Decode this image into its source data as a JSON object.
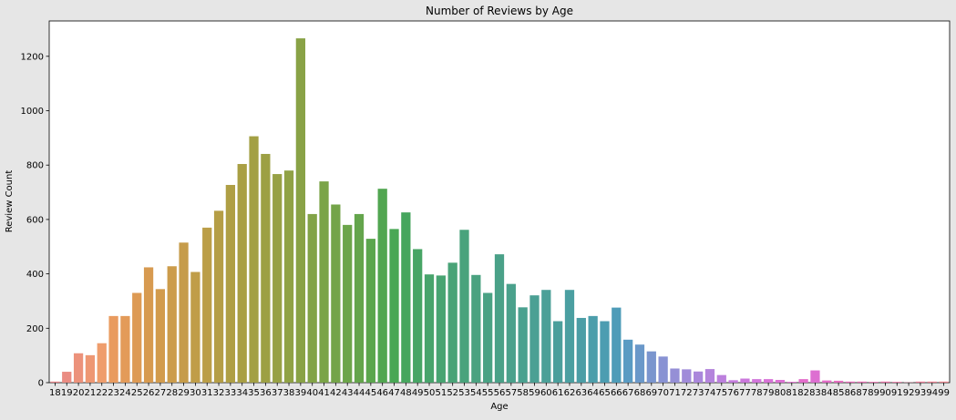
{
  "chart_data": {
    "type": "bar",
    "title": "Number of Reviews by Age",
    "xlabel": "Age",
    "ylabel": "Review Count",
    "ylim": [
      0,
      1330
    ],
    "yticks": [
      0,
      200,
      400,
      600,
      800,
      1000,
      1200
    ],
    "grid": false,
    "legend": "none",
    "categories": [
      "18",
      "19",
      "20",
      "21",
      "22",
      "23",
      "24",
      "25",
      "26",
      "27",
      "28",
      "29",
      "30",
      "31",
      "32",
      "33",
      "34",
      "35",
      "36",
      "37",
      "38",
      "39",
      "40",
      "41",
      "42",
      "43",
      "44",
      "45",
      "46",
      "47",
      "48",
      "49",
      "50",
      "51",
      "52",
      "53",
      "54",
      "55",
      "56",
      "57",
      "58",
      "59",
      "60",
      "61",
      "62",
      "63",
      "64",
      "65",
      "66",
      "67",
      "68",
      "69",
      "70",
      "71",
      "72",
      "73",
      "74",
      "75",
      "76",
      "77",
      "78",
      "79",
      "80",
      "81",
      "82",
      "83",
      "84",
      "85",
      "86",
      "87",
      "89",
      "90",
      "91",
      "92",
      "93",
      "94",
      "99"
    ],
    "values": [
      4,
      40,
      108,
      101,
      145,
      245,
      245,
      330,
      424,
      344,
      428,
      515,
      407,
      570,
      632,
      727,
      804,
      906,
      841,
      767,
      780,
      1266,
      620,
      740,
      655,
      580,
      620,
      529,
      713,
      565,
      626,
      491,
      398,
      394,
      441,
      562,
      396,
      330,
      472,
      363,
      277,
      321,
      341,
      226,
      341,
      238,
      245,
      226,
      276,
      158,
      140,
      115,
      96,
      52,
      49,
      41,
      50,
      28,
      9,
      15,
      13,
      13,
      10,
      3,
      13,
      45,
      8,
      7,
      4,
      4,
      3,
      4,
      3,
      1,
      4,
      4,
      4
    ],
    "colors": [
      "#e8858a",
      "#ea8c82",
      "#ec927b",
      "#ee9773",
      "#ef9d6c",
      "#e99b5f",
      "#e39b59",
      "#dd9a54",
      "#d79a50",
      "#d29b4d",
      "#cc9c4b",
      "#c69c4a",
      "#c09d48",
      "#bb9e47",
      "#b59e46",
      "#af9f45",
      "#a99f44",
      "#a3a044",
      "#9da044",
      "#97a145",
      "#90a245",
      "#89a246",
      "#82a347",
      "#7ba448",
      "#74a449",
      "#6ca54a",
      "#64a54c",
      "#5ba64e",
      "#52a651",
      "#49a755",
      "#46a65e",
      "#47a565",
      "#48a46c",
      "#48a472",
      "#49a377",
      "#49a37c",
      "#4aa280",
      "#4aa284",
      "#4aa188",
      "#4aa18c",
      "#4aa190",
      "#4ba094",
      "#4ba098",
      "#4b9f9c",
      "#4b9fa1",
      "#4c9ea6",
      "#4c9eab",
      "#4d9db1",
      "#4e9cb8",
      "#5a9bc3",
      "#6a98c9",
      "#7a95ce",
      "#8892d3",
      "#958fd6",
      "#a08bd9",
      "#aa87db",
      "#b484dc",
      "#bc80dd",
      "#c47cdd",
      "#cb78dc",
      "#d175da",
      "#d772d7",
      "#dc70d3",
      "#e06ecf",
      "#e36dcb",
      "#dd6fd1",
      "#e26cc7",
      "#e56dc0",
      "#e76eba",
      "#e770b4",
      "#e873ae",
      "#e875a8",
      "#e977a3",
      "#e97a9d",
      "#e97c97",
      "#e98091",
      "#e8838c"
    ]
  }
}
